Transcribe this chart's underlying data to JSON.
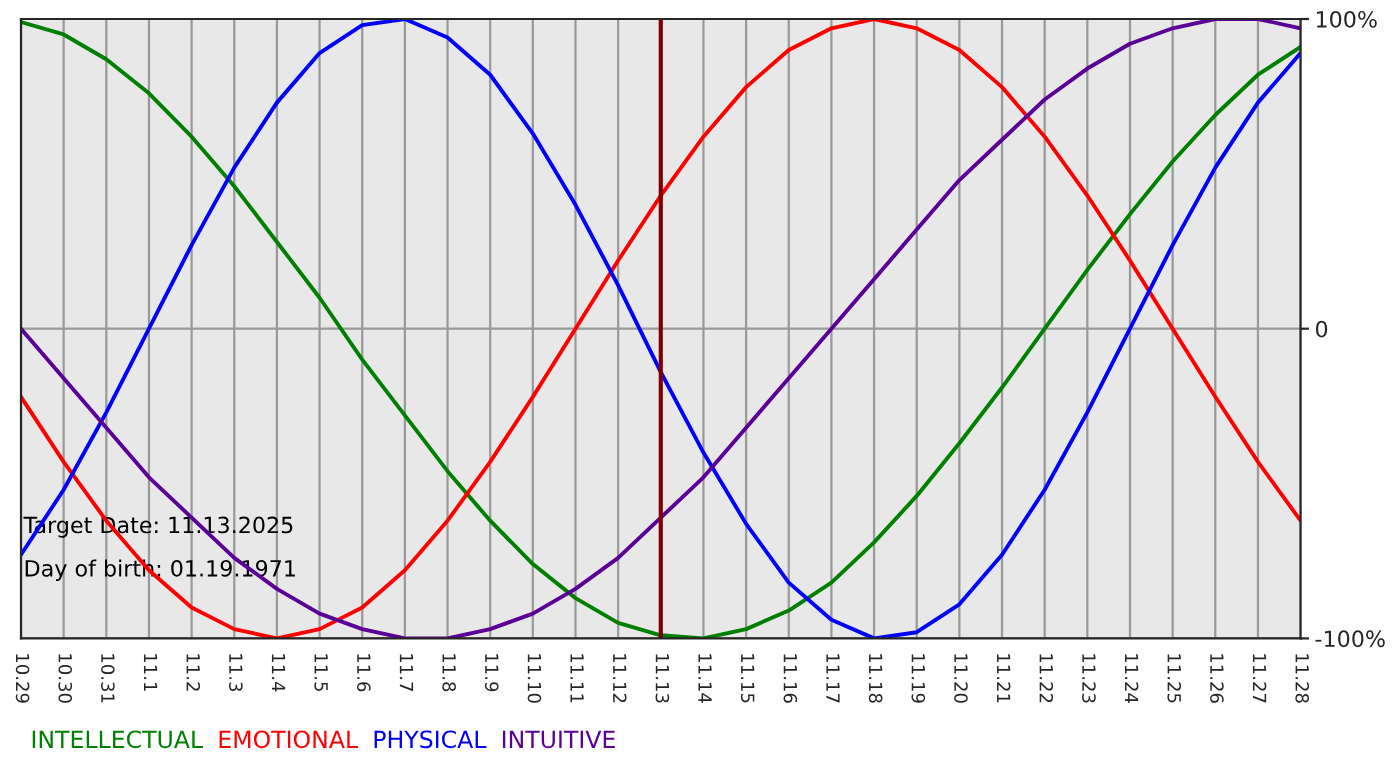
{
  "chart_data": {
    "type": "line",
    "categories": [
      "10.29",
      "10.30",
      "10.31",
      "11.1",
      "11.2",
      "11.3",
      "11.4",
      "11.5",
      "11.6",
      "11.7",
      "11.8",
      "11.9",
      "11.10",
      "11.11",
      "11.12",
      "11.13",
      "11.14",
      "11.15",
      "11.16",
      "11.17",
      "11.18",
      "11.19",
      "11.20",
      "11.21",
      "11.22",
      "11.23",
      "11.24",
      "11.25",
      "11.26",
      "11.27",
      "11.28"
    ],
    "series": [
      {
        "name": "INTELLECTUAL",
        "color": "#008000",
        "values": [
          99,
          95,
          87,
          76,
          62,
          46,
          28,
          10,
          -10,
          -28,
          -46,
          -62,
          -76,
          -87,
          -95,
          -99,
          -100,
          -97,
          -91,
          -82,
          -69,
          -54,
          -37,
          -19,
          0,
          19,
          37,
          54,
          69,
          82,
          91
        ]
      },
      {
        "name": "EMOTIONAL",
        "color": "#ff0000",
        "values": [
          -22,
          -43,
          -62,
          -78,
          -90,
          -97,
          -100,
          -97,
          -90,
          -78,
          -62,
          -43,
          -22,
          0,
          22,
          43,
          62,
          78,
          90,
          97,
          100,
          97,
          90,
          78,
          62,
          43,
          22,
          0,
          -22,
          -43,
          -62
        ]
      },
      {
        "name": "PHYSICAL",
        "color": "#0000ff",
        "values": [
          -73,
          -52,
          -27,
          0,
          27,
          52,
          73,
          89,
          98,
          100,
          94,
          82,
          63,
          40,
          14,
          -14,
          -40,
          -63,
          -82,
          -94,
          -100,
          -98,
          -89,
          -73,
          -52,
          -27,
          0,
          27,
          52,
          73,
          89
        ]
      },
      {
        "name": "INTUITIVE",
        "color": "#5a0096",
        "values": [
          0,
          -16,
          -32,
          -48,
          -61,
          -74,
          -84,
          -92,
          -97,
          -100,
          -100,
          -97,
          -92,
          -84,
          -74,
          -61,
          -48,
          -32,
          -16,
          0,
          16,
          32,
          48,
          61,
          74,
          84,
          92,
          97,
          100,
          100,
          97
        ]
      }
    ],
    "ylim": [
      -100,
      100
    ],
    "yticks": [
      {
        "value": 100,
        "label": "100%"
      },
      0,
      {
        "value": -100,
        "label": "-100%"
      }
    ],
    "ref_lines": [
      {
        "axis": "x",
        "value": "11.13",
        "color": "#800000"
      }
    ],
    "annotations": [
      "Target Date: 11.13.2025",
      "Day of birth: 01.19.1971"
    ],
    "grid": true,
    "legend": "bottom left",
    "marker": "none",
    "line_style": "solid"
  }
}
